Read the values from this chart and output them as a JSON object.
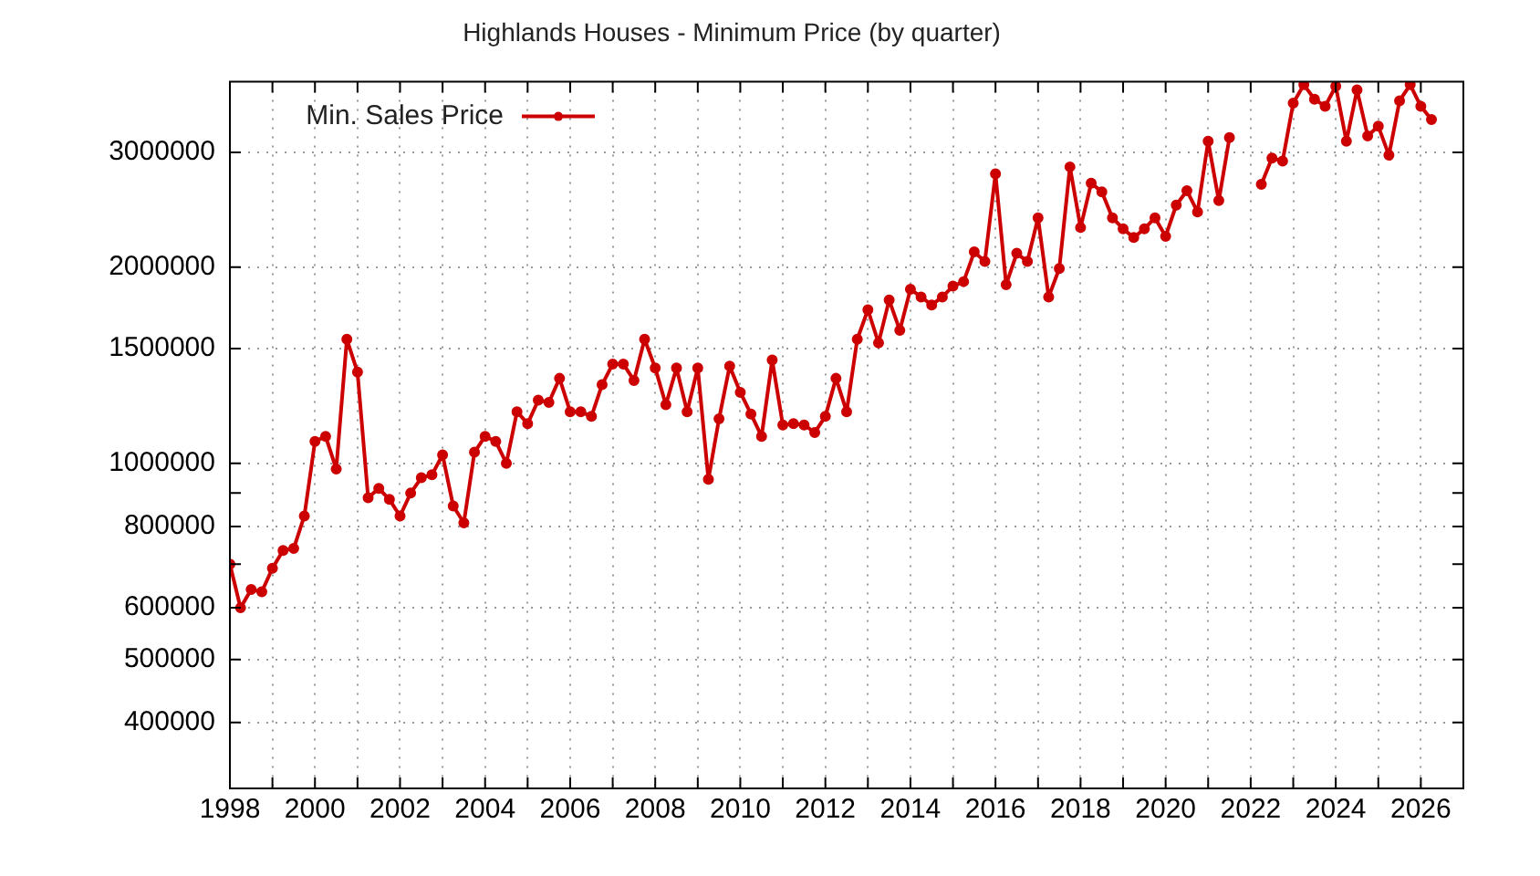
{
  "chart_data": {
    "type": "line",
    "title": "Highlands Houses - Minimum Price (by quarter)",
    "x": [
      1998,
      1998.25,
      1998.5,
      1998.75,
      1999,
      1999.25,
      1999.5,
      1999.75,
      2000,
      2000.25,
      2000.5,
      2000.75,
      2001,
      2001.25,
      2001.5,
      2001.75,
      2002,
      2002.25,
      2002.5,
      2002.75,
      2003,
      2003.25,
      2003.5,
      2003.75,
      2004,
      2004.25,
      2004.5,
      2004.75,
      2005,
      2005.25,
      2005.5,
      2005.75,
      2006,
      2006.25,
      2006.5,
      2006.75,
      2007,
      2007.25,
      2007.5,
      2007.75,
      2008,
      2008.25,
      2008.5,
      2008.75,
      2009,
      2009.25,
      2009.5,
      2009.75,
      2010,
      2010.25,
      2010.5,
      2010.75,
      2011,
      2011.25,
      2011.5,
      2011.75,
      2012,
      2012.25,
      2012.5,
      2012.75,
      2013,
      2013.25,
      2013.5,
      2013.75,
      2014,
      2014.25,
      2014.5,
      2014.75,
      2015,
      2015.25,
      2015.5,
      2015.75,
      2016,
      2016.25,
      2016.5,
      2016.75,
      2017,
      2017.25,
      2017.5,
      2017.75,
      2018,
      2018.25,
      2018.5,
      2018.75,
      2019,
      2019.25,
      2019.5,
      2019.75,
      2020,
      2020.25,
      2020.5,
      2020.75,
      2021,
      2021.25,
      2021.5,
      2021.75,
      2022,
      2022.25,
      2022.5,
      2022.75,
      2023,
      2023.25,
      2023.5,
      2023.75,
      2024,
      2024.25,
      2024.5,
      2024.75,
      2025,
      2025.25,
      2025.5,
      2025.75,
      2026,
      2026.25
    ],
    "series": [
      {
        "name": "Min. Sales Price",
        "color": "#cc0000",
        "values": [
          700000,
          600000,
          640000,
          635000,
          690000,
          735000,
          740000,
          830000,
          1080000,
          1100000,
          980000,
          1550000,
          1380000,
          885000,
          915000,
          880000,
          830000,
          900000,
          950000,
          960000,
          1030000,
          860000,
          810000,
          1040000,
          1100000,
          1080000,
          1000000,
          1200000,
          1150000,
          1250000,
          1240000,
          1350000,
          1200000,
          1200000,
          1180000,
          1320000,
          1420000,
          1420000,
          1340000,
          1550000,
          1400000,
          1230000,
          1400000,
          1200000,
          1400000,
          945000,
          1170000,
          1410000,
          1285000,
          1190000,
          1100000,
          1440000,
          1145000,
          1150000,
          1145000,
          1115000,
          1180000,
          1350000,
          1200000,
          1550000,
          1720000,
          1530000,
          1780000,
          1600000,
          1850000,
          1800000,
          1750000,
          1800000,
          1870000,
          1900000,
          2110000,
          2040000,
          2780000,
          1880000,
          2100000,
          2040000,
          2380000,
          1800000,
          1990000,
          2850000,
          2300000,
          2690000,
          2610000,
          2380000,
          2290000,
          2220000,
          2290000,
          2380000,
          2230000,
          2490000,
          2620000,
          2430000,
          3120000,
          2530000,
          3160000,
          null,
          null,
          2680000,
          2940000,
          2910000,
          3570000,
          3810000,
          3620000,
          3530000,
          3790000,
          3120000,
          3740000,
          3180000,
          3290000,
          2970000,
          3600000,
          3810000,
          3530000,
          3370000
        ]
      }
    ],
    "log": "y",
    "xlim": [
      1998,
      2027
    ],
    "ylim": [
      317000,
      3850000
    ],
    "xticks": [
      1998,
      {
        "value": 1999,
        "label": null
      },
      2000,
      {
        "value": 2001,
        "label": null
      },
      2002,
      {
        "value": 2003,
        "label": null
      },
      2004,
      {
        "value": 2005,
        "label": null
      },
      2006,
      {
        "value": 2007,
        "label": null
      },
      2008,
      {
        "value": 2009,
        "label": null
      },
      2010,
      {
        "value": 2011,
        "label": null
      },
      2012,
      {
        "value": 2013,
        "label": null
      },
      2014,
      {
        "value": 2015,
        "label": null
      },
      2016,
      {
        "value": 2017,
        "label": null
      },
      2018,
      {
        "value": 2019,
        "label": null
      },
      2020,
      {
        "value": 2021,
        "label": null
      },
      2022,
      {
        "value": 2023,
        "label": null
      },
      2024,
      {
        "value": 2025,
        "label": null
      },
      2026
    ],
    "yticks": [
      400000,
      500000,
      600000,
      {
        "value": 700000,
        "label": null
      },
      800000,
      {
        "value": 900000,
        "label": null
      },
      1000000,
      1500000,
      2000000,
      3000000
    ],
    "grid": true,
    "legend": "top left",
    "marker": "circle",
    "line_style": "solid"
  }
}
